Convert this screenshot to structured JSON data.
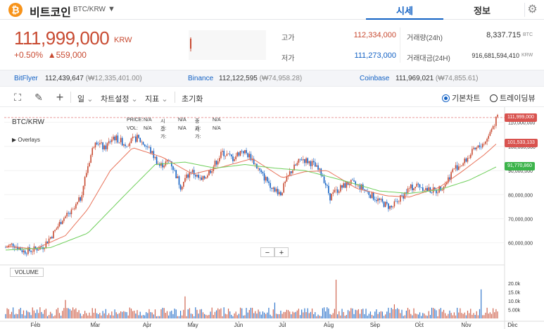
{
  "header": {
    "logo_glyph": "₿",
    "coin_name": "비트코인",
    "coin_symbol": "BTC/KRW",
    "caret": "▼",
    "tabs": [
      {
        "label": "시세",
        "active": true
      },
      {
        "label": "정보",
        "active": false
      }
    ],
    "settings_icon": "gear-icon"
  },
  "summary": {
    "price": "111,999,000",
    "unit": "KRW",
    "change_pct": "+0.50%",
    "change_amt": "▲559,000",
    "high_label": "고가",
    "high_value": "112,334,000",
    "low_label": "저가",
    "low_value": "111,273,000",
    "volume_label": "거래량(24h)",
    "volume_value": "8,337.715",
    "volume_unit": "BTC",
    "amount_label": "거래대금(24H)",
    "amount_value": "916,681,594,410",
    "amount_unit": "KRW",
    "up_color": "#c84a31",
    "down_color": "#1261c4"
  },
  "exchanges": [
    {
      "name": "BitFlyer",
      "price": "112,439,647",
      "diff": "(₩12,335,401.00)"
    },
    {
      "name": "Binance",
      "price": "112,122,595",
      "diff": "(₩74,958.28)"
    },
    {
      "name": "Coinbase",
      "price": "111,969,021",
      "diff": "(₩74,855.61)"
    }
  ],
  "toolbar": {
    "interval": "일",
    "chart_settings": "차트설정",
    "indicators": "지표",
    "reset": "초기화",
    "basic_chart": "기본차트",
    "tradingview": "트레이딩뷰"
  },
  "chart": {
    "legend_title": "BTC/KRW",
    "overlays": "▶ Overlays",
    "info": [
      [
        "PRICE:",
        "N/A",
        "시가:",
        "N/A",
        "종가:",
        "N/A"
      ],
      [
        "VOL:",
        "N/A",
        "고가:",
        "N/A",
        "저가:",
        "N/A"
      ]
    ],
    "zoom_out": "−",
    "zoom_in": "+",
    "volume_label": "VOLUME",
    "price_tags": [
      {
        "text": "111,999,000",
        "color": "#d9534f",
        "price": 111999000
      },
      {
        "text": "101,533,133",
        "color": "#d9534f",
        "price": 101533133
      },
      {
        "text": "91,770,860",
        "color": "#3cb44b",
        "price": 91770860
      }
    ]
  },
  "chart_data": {
    "type": "candlestick",
    "x_ticks": [
      "Feb",
      "Mar",
      "Apr",
      "May",
      "Jun",
      "Jul",
      "Aug",
      "Sep",
      "Oct",
      "Nov",
      "Dec"
    ],
    "y_ticks": [
      "110,000,000",
      "100,000,000",
      "90,000,000",
      "80,000,000",
      "70,000,000",
      "60,000,000"
    ],
    "y_tick_values": [
      110000000,
      100000000,
      90000000,
      80000000,
      70000000,
      60000000
    ],
    "ylim": [
      52000000,
      114000000
    ],
    "volume_ticks": [
      "20.0k",
      "15.0k",
      "10.0k",
      "5.00k"
    ],
    "volume_tick_values": [
      20000,
      15000,
      10000,
      5000
    ],
    "volume_ylim": [
      0,
      24000
    ],
    "close_anchor_points": [
      [
        0,
        58000000
      ],
      [
        5,
        59500000
      ],
      [
        12,
        56500000
      ],
      [
        18,
        57000000
      ],
      [
        25,
        58500000
      ],
      [
        32,
        64000000
      ],
      [
        38,
        70000000
      ],
      [
        45,
        73000000
      ],
      [
        50,
        78500000
      ],
      [
        55,
        92000000
      ],
      [
        60,
        103000000
      ],
      [
        66,
        99000000
      ],
      [
        72,
        104000000
      ],
      [
        80,
        101000000
      ],
      [
        88,
        103500000
      ],
      [
        96,
        99000000
      ],
      [
        103,
        92000000
      ],
      [
        110,
        94000000
      ],
      [
        117,
        83500000
      ],
      [
        124,
        90000000
      ],
      [
        131,
        85500000
      ],
      [
        138,
        91000000
      ],
      [
        145,
        97500000
      ],
      [
        152,
        95000000
      ],
      [
        158,
        98500000
      ],
      [
        164,
        95500000
      ],
      [
        171,
        88500000
      ],
      [
        178,
        83500000
      ],
      [
        184,
        80500000
      ],
      [
        190,
        89000000
      ],
      [
        198,
        95000000
      ],
      [
        205,
        93000000
      ],
      [
        212,
        88000000
      ],
      [
        217,
        79000000
      ],
      [
        222,
        82000000
      ],
      [
        230,
        85000000
      ],
      [
        238,
        83000000
      ],
      [
        245,
        79500000
      ],
      [
        252,
        76500000
      ],
      [
        258,
        74500000
      ],
      [
        264,
        78500000
      ],
      [
        270,
        82500000
      ],
      [
        276,
        84000000
      ],
      [
        282,
        82000000
      ],
      [
        288,
        81500000
      ],
      [
        294,
        84500000
      ],
      [
        300,
        91000000
      ],
      [
        306,
        93000000
      ],
      [
        312,
        97500000
      ],
      [
        318,
        100500000
      ],
      [
        322,
        103000000
      ],
      [
        326,
        108500000
      ],
      [
        329,
        111999000
      ]
    ],
    "ma20_anchor_points": [
      [
        0,
        58500000
      ],
      [
        20,
        57500000
      ],
      [
        40,
        63000000
      ],
      [
        55,
        74000000
      ],
      [
        70,
        90000000
      ],
      [
        85,
        99500000
      ],
      [
        105,
        95500000
      ],
      [
        125,
        88500000
      ],
      [
        145,
        91500000
      ],
      [
        165,
        95000000
      ],
      [
        185,
        87000000
      ],
      [
        200,
        89500000
      ],
      [
        215,
        90000000
      ],
      [
        235,
        82500000
      ],
      [
        255,
        79500000
      ],
      [
        270,
        79000000
      ],
      [
        290,
        83000000
      ],
      [
        305,
        89500000
      ],
      [
        320,
        96500000
      ],
      [
        329,
        101533133
      ]
    ],
    "ma60_anchor_points": [
      [
        0,
        57000000
      ],
      [
        30,
        58000000
      ],
      [
        55,
        64000000
      ],
      [
        80,
        80000000
      ],
      [
        100,
        92500000
      ],
      [
        120,
        93500000
      ],
      [
        140,
        91000000
      ],
      [
        160,
        92500000
      ],
      [
        180,
        91000000
      ],
      [
        200,
        90000000
      ],
      [
        225,
        86000000
      ],
      [
        250,
        81500000
      ],
      [
        270,
        80500000
      ],
      [
        290,
        82000000
      ],
      [
        310,
        86000000
      ],
      [
        329,
        91770860
      ]
    ],
    "volume_spike_points": [
      [
        221,
        22000
      ],
      [
        318,
        16500
      ],
      [
        120,
        12500
      ],
      [
        40,
        10500
      ],
      [
        180,
        9000
      ],
      [
        260,
        8000
      ]
    ],
    "series": [
      {
        "name": "BTC/KRW",
        "up_color": "#c84a31",
        "down_color": "#1261c4"
      },
      {
        "color": "#e8735a"
      },
      {
        "color": "#6fcf5b"
      }
    ]
  }
}
